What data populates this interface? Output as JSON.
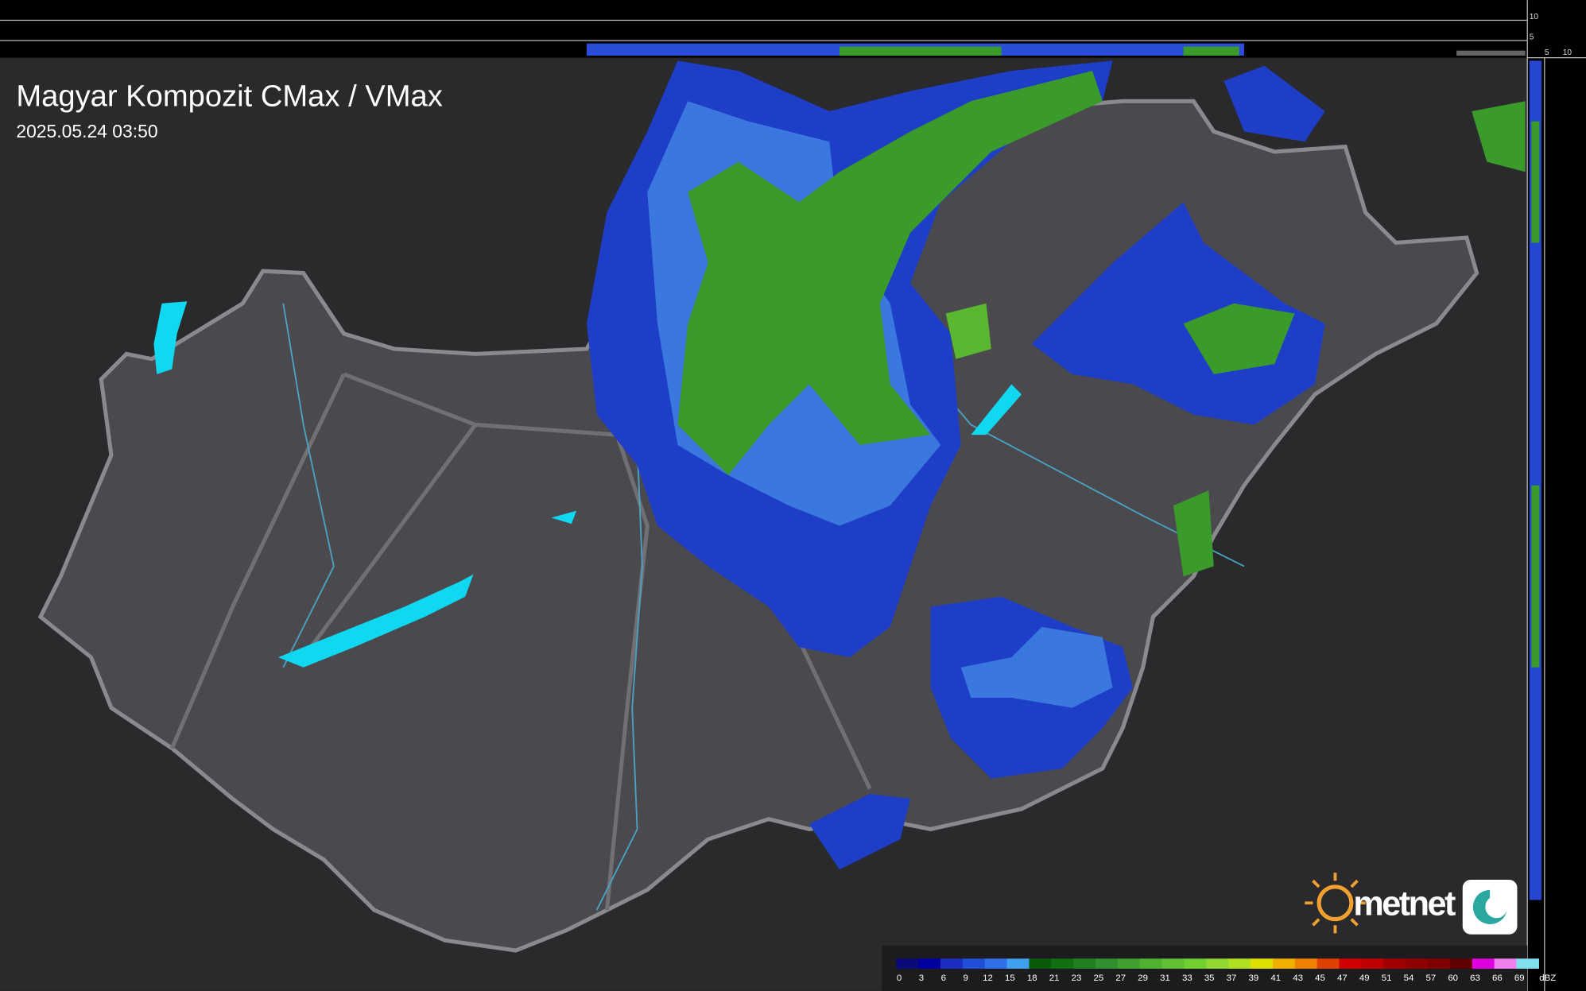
{
  "header": {
    "title": "Magyar Kompozit CMax / VMax",
    "timestamp": "2025.05.24 03:50"
  },
  "side_axis": {
    "labels": [
      "10",
      "5",
      "5",
      "10"
    ]
  },
  "legend": {
    "unit": "dBZ",
    "levels": [
      {
        "label": 0,
        "color": "#0a0a78"
      },
      {
        "label": 3,
        "color": "#0000a0"
      },
      {
        "label": 6,
        "color": "#1a2ec0"
      },
      {
        "label": 9,
        "color": "#2050d8"
      },
      {
        "label": 12,
        "color": "#3070e8"
      },
      {
        "label": 15,
        "color": "#40a0f0"
      },
      {
        "label": 18,
        "color": "#0a5a0a"
      },
      {
        "label": 21,
        "color": "#107010"
      },
      {
        "label": 23,
        "color": "#208020"
      },
      {
        "label": 25,
        "color": "#309030"
      },
      {
        "label": 27,
        "color": "#40a030"
      },
      {
        "label": 29,
        "color": "#50b030"
      },
      {
        "label": 31,
        "color": "#60c030"
      },
      {
        "label": 33,
        "color": "#70d030"
      },
      {
        "label": 35,
        "color": "#90d830"
      },
      {
        "label": 37,
        "color": "#b0e020"
      },
      {
        "label": 39,
        "color": "#e0e000"
      },
      {
        "label": 41,
        "color": "#f0b000"
      },
      {
        "label": 43,
        "color": "#f08000"
      },
      {
        "label": 45,
        "color": "#e04000"
      },
      {
        "label": 47,
        "color": "#d00000"
      },
      {
        "label": 49,
        "color": "#c00000"
      },
      {
        "label": 51,
        "color": "#a00000"
      },
      {
        "label": 54,
        "color": "#900000"
      },
      {
        "label": 57,
        "color": "#800000"
      },
      {
        "label": 60,
        "color": "#600000"
      },
      {
        "label": 63,
        "color": "#e000e0"
      },
      {
        "label": 66,
        "color": "#f080f0"
      },
      {
        "label": 69,
        "color": "#80e0f0"
      }
    ]
  },
  "logo": {
    "text": "metnet"
  }
}
